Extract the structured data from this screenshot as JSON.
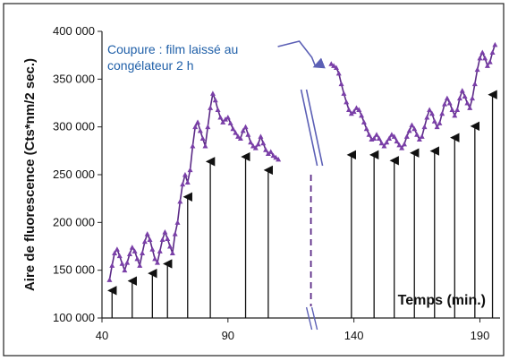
{
  "chart_data": {
    "type": "line",
    "ylabel": "Aire de fluorescence (Cts*nm/2 sec.)",
    "xlabel": "Temps (min.)",
    "xlim": [
      40,
      198
    ],
    "ylim": [
      100000,
      400000
    ],
    "x_ticks": [
      40,
      90,
      140,
      190
    ],
    "x_tick_labels": [
      "40",
      "90",
      "140",
      "190"
    ],
    "y_ticks": [
      100000,
      150000,
      200000,
      250000,
      300000,
      350000,
      400000
    ],
    "y_tick_labels": [
      "100 000",
      "150 000",
      "200 000",
      "250 000",
      "300 000",
      "350 000",
      "400 000"
    ],
    "annotation": {
      "line1": "Coupure : film laissé au",
      "line2": "congélateur 2 h"
    },
    "break_at_x": 124,
    "colors": {
      "series": "#5b2a86",
      "marker": "#7a3fa8",
      "annotation": "#1f5fa8",
      "arrows": "#111111"
    },
    "series": [
      {
        "segment": "before-break",
        "x": [
          43,
          44,
          45,
          46,
          47,
          48,
          49,
          50,
          51,
          52,
          53,
          54,
          55,
          56,
          57,
          58,
          59,
          60,
          61,
          62,
          63,
          64,
          65,
          66,
          67,
          68,
          69,
          70,
          71,
          72,
          73,
          74,
          75,
          76,
          77,
          78,
          79,
          80,
          81,
          82,
          83,
          84,
          85,
          86,
          87,
          88,
          89,
          90,
          91,
          92,
          93,
          94,
          95,
          96,
          97,
          98,
          99,
          100,
          101,
          102,
          103,
          104,
          105,
          106,
          107,
          108,
          109,
          110
        ],
        "y": [
          140000,
          155000,
          168000,
          172000,
          165000,
          157000,
          150000,
          158000,
          167000,
          174000,
          170000,
          162000,
          155000,
          168000,
          180000,
          188000,
          182000,
          172000,
          162000,
          158000,
          170000,
          182000,
          190000,
          183000,
          175000,
          168000,
          188000,
          200000,
          222000,
          240000,
          250000,
          242000,
          255000,
          280000,
          300000,
          305000,
          296000,
          288000,
          280000,
          300000,
          320000,
          335000,
          328000,
          318000,
          310000,
          305000,
          308000,
          310000,
          304000,
          298000,
          294000,
          290000,
          288000,
          296000,
          300000,
          292000,
          284000,
          280000,
          278000,
          282000,
          290000,
          283000,
          276000,
          272000,
          274000,
          270000,
          268000,
          266000
        ]
      },
      {
        "segment": "after-break",
        "x": [
          131,
          132,
          133,
          134,
          135,
          136,
          137,
          138,
          139,
          140,
          141,
          142,
          143,
          144,
          145,
          146,
          147,
          148,
          149,
          150,
          151,
          152,
          153,
          154,
          155,
          156,
          157,
          158,
          159,
          160,
          161,
          162,
          163,
          164,
          165,
          166,
          167,
          168,
          169,
          170,
          171,
          172,
          173,
          174,
          175,
          176,
          177,
          178,
          179,
          180,
          181,
          182,
          183,
          184,
          185,
          186,
          187,
          188,
          189,
          190,
          191,
          192,
          193,
          194,
          195,
          196
        ],
        "y": [
          366000,
          364000,
          362000,
          356000,
          345000,
          335000,
          326000,
          318000,
          314000,
          316000,
          320000,
          318000,
          312000,
          305000,
          298000,
          292000,
          287000,
          288000,
          292000,
          288000,
          283000,
          280000,
          284000,
          288000,
          292000,
          290000,
          285000,
          281000,
          278000,
          282000,
          290000,
          296000,
          302000,
          298000,
          292000,
          287000,
          290000,
          300000,
          310000,
          318000,
          314000,
          306000,
          300000,
          304000,
          314000,
          324000,
          330000,
          325000,
          318000,
          312000,
          318000,
          330000,
          338000,
          332000,
          325000,
          320000,
          330000,
          345000,
          360000,
          372000,
          378000,
          372000,
          364000,
          368000,
          378000,
          386000
        ]
      }
    ],
    "arrows": {
      "x": [
        44,
        52,
        60,
        66,
        74,
        83,
        97,
        106,
        139,
        148,
        156,
        164,
        172,
        180,
        188,
        195
      ],
      "y_top": [
        140000,
        150000,
        158000,
        168000,
        238000,
        275000,
        280000,
        266000,
        282000,
        282000,
        276000,
        284000,
        286000,
        300000,
        312000,
        345000
      ]
    }
  }
}
